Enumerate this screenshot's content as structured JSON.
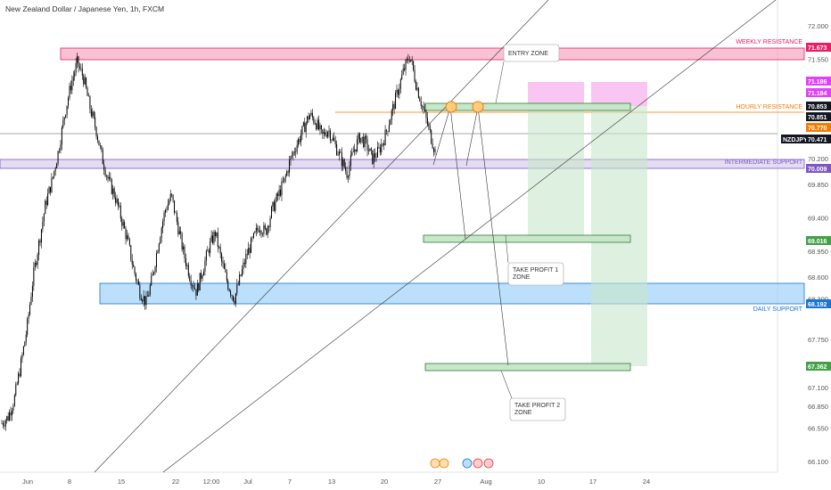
{
  "title": "New Zealand Dollar / Japanese Yen, 1h, FXCM",
  "chart_data": {
    "type": "candlestick",
    "symbol": "NZDJPY",
    "last_price": 70.471,
    "y_axis_ticks": [
      "72.000",
      "71.550",
      "71.100",
      "70.650",
      "70.200",
      "69.850",
      "69.400",
      "68.950",
      "68.600",
      "68.300",
      "67.750",
      "67.400",
      "67.100",
      "66.850",
      "66.550",
      "66.100"
    ],
    "y_tick_values": [
      72.0,
      71.55,
      71.1,
      70.65,
      70.2,
      69.85,
      69.4,
      68.95,
      68.6,
      68.3,
      67.75,
      67.4,
      67.1,
      66.85,
      66.55,
      66.1
    ],
    "x_axis_ticks": [
      "Jun",
      "8",
      "15",
      "22",
      "12:00",
      "Jul",
      "7",
      "13",
      "20",
      "27",
      "Aug",
      "10",
      "17",
      "24"
    ],
    "price_tags": [
      {
        "value": "71.673",
        "color": "#e91e63"
      },
      {
        "value": "71.186",
        "color": "#e040fb"
      },
      {
        "value": "71.184",
        "color": "#e040fb"
      },
      {
        "value": "70.853",
        "color": "#131722"
      },
      {
        "value": "70.851",
        "color": "#131722"
      },
      {
        "value": "70.770",
        "color": "#f57c00"
      },
      {
        "value": "NZDJPY",
        "color": "#131722"
      },
      {
        "value": "70.471",
        "color": "#131722"
      },
      {
        "value": "70.009",
        "color": "#7e57c2"
      },
      {
        "value": "69.016",
        "color": "#43a047"
      },
      {
        "value": "68.192",
        "color": "#1976d2"
      },
      {
        "value": "67.362",
        "color": "#43a047"
      }
    ],
    "levels": [
      {
        "label": "WEEKLY RESISTANCE",
        "color": "#e91e63"
      },
      {
        "label": "HOURLY RESISTANCE",
        "color": "#f57c00"
      },
      {
        "label": "INTERMEDIATE SUPPORT",
        "color": "#7e57c2"
      },
      {
        "label": "DAILY SUPPORT",
        "color": "#1976d2"
      }
    ],
    "zones": [
      {
        "label": "ENTRY ZONE"
      },
      {
        "label": "TAKE PROFIT 1",
        "label2": "ZONE"
      },
      {
        "label": "TAKE PROFIT 2",
        "label2": "ZONE"
      }
    ],
    "price_path": [
      [
        66.62,
        66.7
      ],
      [
        66.95,
        67.4
      ],
      [
        67.9,
        68.6
      ],
      [
        69.1,
        69.6
      ],
      [
        69.9,
        70.3
      ],
      [
        70.8,
        71.2
      ],
      [
        71.5,
        71.3
      ],
      [
        70.9,
        70.6
      ],
      [
        70.2,
        69.9
      ],
      [
        69.7,
        69.4
      ],
      [
        69.1,
        68.7
      ],
      [
        68.4,
        68.25
      ],
      [
        68.6,
        69.1
      ],
      [
        69.5,
        69.7
      ],
      [
        69.3,
        68.9
      ],
      [
        68.6,
        68.4
      ],
      [
        68.7,
        69.0
      ],
      [
        69.2,
        68.8
      ],
      [
        68.5,
        68.3
      ],
      [
        68.6,
        68.9
      ],
      [
        69.1,
        69.3
      ],
      [
        69.2,
        69.5
      ],
      [
        69.7,
        69.9
      ],
      [
        70.2,
        70.4
      ],
      [
        70.6,
        70.8
      ],
      [
        70.7,
        70.5
      ],
      [
        70.6,
        70.4
      ],
      [
        70.2,
        70.0
      ],
      [
        70.3,
        70.5
      ],
      [
        70.4,
        70.2
      ],
      [
        70.3,
        70.5
      ],
      [
        70.8,
        71.1
      ],
      [
        71.4,
        71.6
      ],
      [
        71.2,
        70.9
      ],
      [
        70.6,
        70.3
      ]
    ]
  }
}
